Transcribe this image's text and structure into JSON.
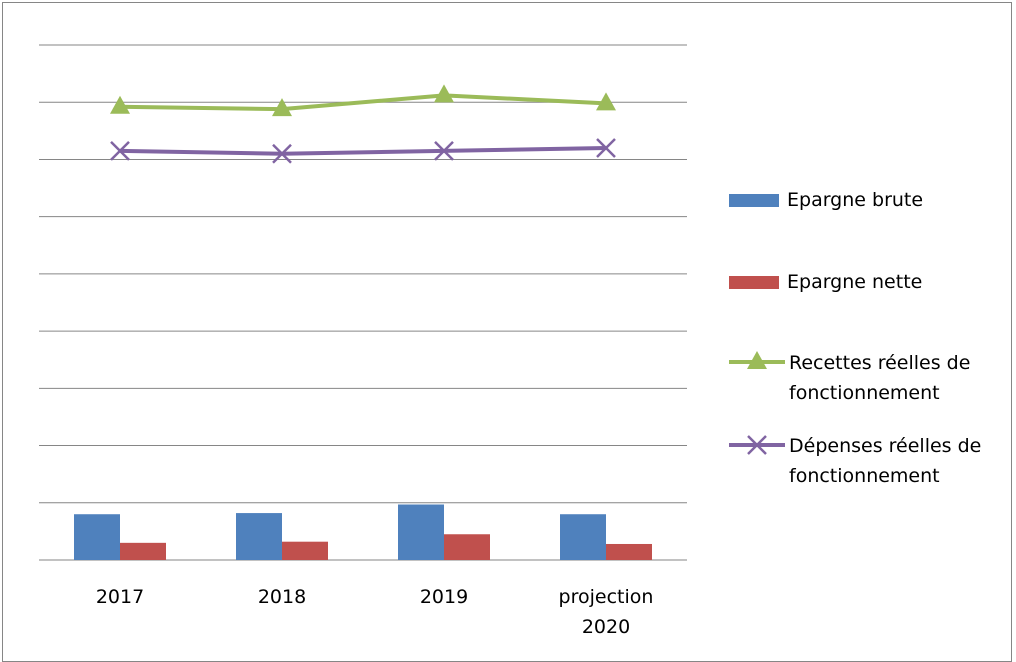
{
  "chart_data": {
    "type": "bar",
    "categories": [
      [
        "2017"
      ],
      [
        "2018"
      ],
      [
        "2019"
      ],
      [
        "projection",
        "2020"
      ]
    ],
    "ylim": [
      0,
      9
    ],
    "grid": true,
    "legend_position": "right",
    "series": [
      {
        "name": "Epargne brute",
        "type": "bar",
        "color": "#4F81BD",
        "values": [
          0.8,
          0.82,
          0.97,
          0.8
        ]
      },
      {
        "name": "Epargne nette",
        "type": "bar",
        "color": "#C0504D",
        "values": [
          0.3,
          0.32,
          0.45,
          0.28
        ]
      },
      {
        "name": "Recettes réelles de fonctionnement",
        "type": "line",
        "marker": "triangle",
        "color": "#9BBB59",
        "values": [
          7.92,
          7.88,
          8.12,
          7.98
        ]
      },
      {
        "name": "Dépenses réelles de fonctionnement",
        "type": "line",
        "marker": "x",
        "color": "#8064A2",
        "values": [
          7.15,
          7.1,
          7.15,
          7.2
        ]
      }
    ],
    "legend_lines": [
      [
        "Epargne brute"
      ],
      [
        "Epargne nette"
      ],
      [
        "Recettes réelles de",
        "fonctionnement"
      ],
      [
        "Dépenses réelles de",
        "fonctionnement"
      ]
    ]
  }
}
